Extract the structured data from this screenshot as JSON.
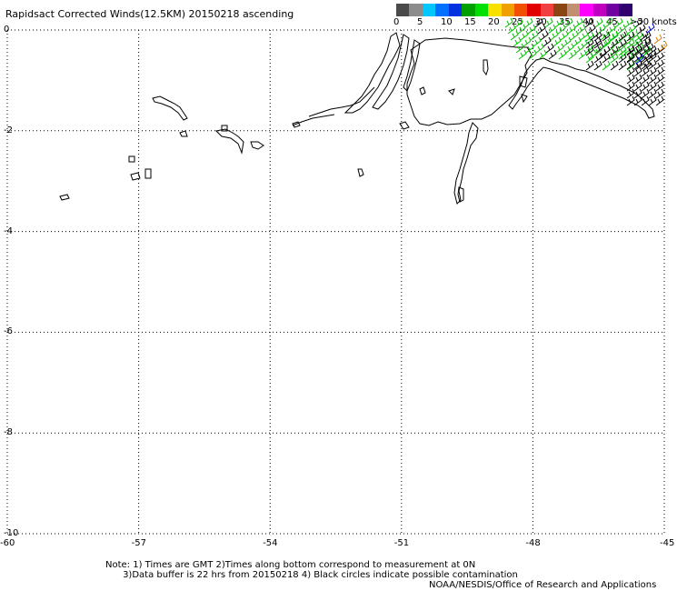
{
  "title": "Rapidsact Corrected Winds(12.5KM) 20150218 ascending",
  "legend": {
    "colors": [
      "#4a4a4a",
      "#8c8c8c",
      "#00c8ff",
      "#0070ff",
      "#0030e0",
      "#00a000",
      "#00e000",
      "#f8e000",
      "#f0a000",
      "#f05000",
      "#e00000",
      "#f04040",
      "#8b4513",
      "#c09070",
      "#ff00ff",
      "#c000c0",
      "#7000a0",
      "#300070"
    ],
    "ticks": [
      {
        "label": "0",
        "value": 0
      },
      {
        "label": "5",
        "value": 5
      },
      {
        "label": "10",
        "value": 10
      },
      {
        "label": "15",
        "value": 15
      },
      {
        "label": "20",
        "value": 20
      },
      {
        "label": "25",
        "value": 25
      },
      {
        "label": "30",
        "value": 30
      },
      {
        "label": "35",
        "value": 35
      },
      {
        "label": "40",
        "value": 40
      },
      {
        "label": "45",
        "value": 45
      },
      {
        "label": ">50 knots",
        "value": 50
      }
    ]
  },
  "axes": {
    "lon_range": [
      -60,
      -45
    ],
    "lat_range": [
      -10,
      0
    ],
    "x_ticks": [
      {
        "label": "-60",
        "value": -60
      },
      {
        "label": "-57",
        "value": -57
      },
      {
        "label": "-54",
        "value": -54
      },
      {
        "label": "-51",
        "value": -51
      },
      {
        "label": "-48",
        "value": -48
      },
      {
        "label": "-45",
        "value": -45
      }
    ],
    "y_ticks": [
      {
        "label": "0",
        "value": 0
      },
      {
        "label": "-2",
        "value": -2
      },
      {
        "label": "-4",
        "value": -4
      },
      {
        "label": "-6",
        "value": -6
      },
      {
        "label": "-8",
        "value": -8
      },
      {
        "label": "-10",
        "value": -10
      }
    ],
    "grid": "dotted"
  },
  "notes": {
    "line1": "Note: 1) Times are GMT 2)Times along bottom correspond to measurement at 0N",
    "line2": "      3)Data buffer is 22 hrs from 20150218 4) Black circles indicate possible contamination",
    "credit": "NOAA/NESDIS/Office of Research and Applications"
  },
  "wind_colors": {
    "green": "#00c000",
    "black": "#000000",
    "blue": "#0000ff",
    "orange": "#e08000"
  }
}
